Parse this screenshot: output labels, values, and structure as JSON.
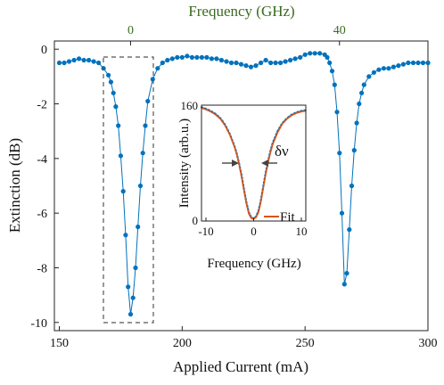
{
  "chart_data": [
    {
      "type": "line",
      "role": "main",
      "xlabel": "Applied Current (mA)",
      "ylabel": "Extinction (dB)",
      "top_xlabel": "Frequency (GHz)",
      "xlim": [
        148,
        300
      ],
      "ylim": [
        -10.3,
        0.3
      ],
      "xticks": [
        150,
        200,
        250,
        300
      ],
      "xtick_labels": [
        "150",
        "200",
        "250",
        "300"
      ],
      "yticks": [
        0,
        -2,
        -4,
        -6,
        -8,
        -10
      ],
      "ytick_labels": [
        "0",
        "-2",
        "-4",
        "-6",
        "-8",
        "-10"
      ],
      "top_xticks_at_current": [
        179,
        264
      ],
      "top_xtick_labels": [
        "0",
        "40"
      ],
      "series": [
        {
          "color": "#0072BD",
          "marker": "circle",
          "x": [
            150,
            152,
            154,
            156,
            158,
            160,
            162,
            164,
            166,
            168,
            170,
            171,
            172,
            173,
            174,
            175,
            176,
            177,
            178,
            179,
            180,
            181,
            182,
            183,
            184,
            185,
            186,
            188,
            190,
            192,
            194,
            196,
            198,
            200,
            202,
            204,
            206,
            208,
            210,
            212,
            214,
            216,
            218,
            220,
            222,
            224,
            226,
            228,
            230,
            232,
            234,
            236,
            238,
            240,
            242,
            244,
            246,
            248,
            250,
            252,
            254,
            256,
            258,
            259,
            260,
            261,
            262,
            263,
            264,
            265,
            266,
            267,
            268,
            269,
            270,
            271,
            272,
            273,
            274,
            276,
            278,
            280,
            282,
            284,
            286,
            288,
            290,
            292,
            294,
            296,
            298,
            300
          ],
          "y": [
            -0.5,
            -0.5,
            -0.45,
            -0.4,
            -0.35,
            -0.4,
            -0.4,
            -0.45,
            -0.5,
            -0.7,
            -0.95,
            -1.2,
            -1.6,
            -2.1,
            -2.8,
            -3.9,
            -5.2,
            -6.8,
            -8.7,
            -9.7,
            -9.1,
            -8.0,
            -6.5,
            -5.0,
            -3.8,
            -2.8,
            -1.9,
            -1.1,
            -0.7,
            -0.5,
            -0.4,
            -0.35,
            -0.3,
            -0.3,
            -0.25,
            -0.3,
            -0.3,
            -0.3,
            -0.3,
            -0.35,
            -0.35,
            -0.4,
            -0.45,
            -0.5,
            -0.5,
            -0.55,
            -0.6,
            -0.65,
            -0.6,
            -0.5,
            -0.4,
            -0.5,
            -0.5,
            -0.5,
            -0.45,
            -0.4,
            -0.35,
            -0.3,
            -0.2,
            -0.15,
            -0.15,
            -0.15,
            -0.2,
            -0.3,
            -0.5,
            -0.8,
            -1.3,
            -2.3,
            -3.8,
            -6.0,
            -8.6,
            -8.2,
            -6.6,
            -5.0,
            -3.7,
            -2.7,
            -2.0,
            -1.6,
            -1.3,
            -1.0,
            -0.85,
            -0.75,
            -0.7,
            -0.7,
            -0.65,
            -0.6,
            -0.55,
            -0.5,
            -0.5,
            -0.5,
            -0.5,
            -0.5
          ]
        }
      ],
      "annotations": [
        "dashed-box around dip at ~179 mA"
      ]
    },
    {
      "type": "line",
      "role": "inset",
      "xlabel": "Frequency (GHz)",
      "ylabel": "Intensity (arb.u.)",
      "xlim": [
        -10,
        10
      ],
      "ylim": [
        0,
        160
      ],
      "xticks": [
        -10,
        0,
        10
      ],
      "xtick_labels": [
        "-10",
        "0",
        "10"
      ],
      "ytick_labels": [
        "160",
        "0"
      ],
      "legend": [
        {
          "label": "Fit",
          "color": "#D95319"
        }
      ],
      "annotation_text": "δν",
      "series": [
        {
          "color": "#0072BD",
          "style": "dotted",
          "x": [
            -11,
            -10,
            -9,
            -8,
            -7,
            -6,
            -5,
            -4,
            -3.5,
            -3,
            -2.5,
            -2,
            -1.5,
            -1,
            -0.5,
            0,
            0.5,
            1,
            1.5,
            2,
            2.5,
            3,
            3.5,
            4,
            5,
            6,
            7,
            8,
            9,
            10,
            11
          ],
          "y": [
            157,
            155,
            152,
            148,
            142,
            133,
            120,
            103,
            92,
            78,
            62,
            43,
            25,
            12,
            5,
            3,
            6,
            14,
            28,
            47,
            66,
            82,
            96,
            108,
            124,
            135,
            142,
            147,
            150,
            152,
            153
          ]
        },
        {
          "name": "Fit",
          "color": "#D95319",
          "style": "solid",
          "x": [
            -11,
            -10,
            -9,
            -8,
            -7,
            -6,
            -5,
            -4,
            -3.5,
            -3,
            -2.5,
            -2,
            -1.5,
            -1,
            -0.5,
            0,
            0.5,
            1,
            1.5,
            2,
            2.5,
            3,
            3.5,
            4,
            5,
            6,
            7,
            8,
            9,
            10,
            11
          ],
          "y": [
            156,
            154,
            151,
            147,
            141,
            132,
            119,
            102,
            91,
            77,
            60,
            41,
            23,
            10,
            4,
            3,
            5,
            12,
            26,
            45,
            64,
            80,
            94,
            106,
            122,
            134,
            141,
            146,
            149,
            151,
            152
          ]
        }
      ]
    }
  ]
}
